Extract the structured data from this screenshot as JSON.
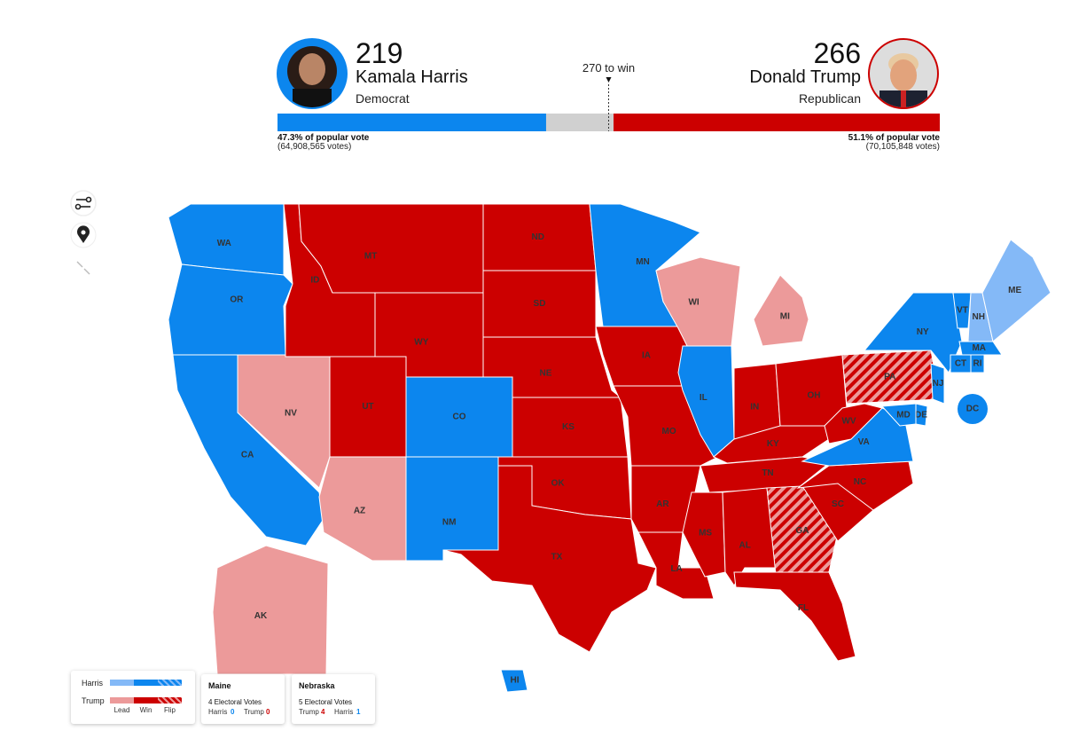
{
  "header": {
    "candidates": [
      {
        "electoral_votes": 219,
        "name": "Kamala Harris",
        "party": "Democrat",
        "color": "#0c86ee",
        "popular": "47.3% of popular vote",
        "votes": "(64,908,565 votes)"
      },
      {
        "electoral_votes": 266,
        "name": "Donald Trump",
        "party": "Republican",
        "color": "#cc0000",
        "popular": "51.1% of popular vote",
        "votes": "(70,105,848 votes)"
      }
    ],
    "threshold": {
      "value": 270,
      "label": "270 to win"
    }
  },
  "legend": {
    "parties": [
      {
        "name": "Harris",
        "lead": "#84b9f7",
        "win": "#0c86ee"
      },
      {
        "name": "Trump",
        "lead": "#ec9a9a",
        "win": "#cc0000"
      }
    ],
    "levels": [
      "Lead",
      "Win",
      "Flip"
    ]
  },
  "states": [
    {
      "abbr": "WA",
      "party": "Harris",
      "level": "Win"
    },
    {
      "abbr": "OR",
      "party": "Harris",
      "level": "Win"
    },
    {
      "abbr": "CA",
      "party": "Harris",
      "level": "Win"
    },
    {
      "abbr": "NV",
      "party": "Trump",
      "level": "Lead"
    },
    {
      "abbr": "ID",
      "party": "Trump",
      "level": "Win"
    },
    {
      "abbr": "MT",
      "party": "Trump",
      "level": "Win"
    },
    {
      "abbr": "WY",
      "party": "Trump",
      "level": "Win"
    },
    {
      "abbr": "UT",
      "party": "Trump",
      "level": "Win"
    },
    {
      "abbr": "CO",
      "party": "Harris",
      "level": "Win"
    },
    {
      "abbr": "AZ",
      "party": "Trump",
      "level": "Lead"
    },
    {
      "abbr": "NM",
      "party": "Harris",
      "level": "Win"
    },
    {
      "abbr": "ND",
      "party": "Trump",
      "level": "Win"
    },
    {
      "abbr": "SD",
      "party": "Trump",
      "level": "Win"
    },
    {
      "abbr": "NE",
      "party": "Trump",
      "level": "Win"
    },
    {
      "abbr": "KS",
      "party": "Trump",
      "level": "Win"
    },
    {
      "abbr": "OK",
      "party": "Trump",
      "level": "Win"
    },
    {
      "abbr": "TX",
      "party": "Trump",
      "level": "Win"
    },
    {
      "abbr": "MN",
      "party": "Harris",
      "level": "Win"
    },
    {
      "abbr": "IA",
      "party": "Trump",
      "level": "Win"
    },
    {
      "abbr": "MO",
      "party": "Trump",
      "level": "Win"
    },
    {
      "abbr": "AR",
      "party": "Trump",
      "level": "Win"
    },
    {
      "abbr": "LA",
      "party": "Trump",
      "level": "Win"
    },
    {
      "abbr": "WI",
      "party": "Trump",
      "level": "Lead"
    },
    {
      "abbr": "IL",
      "party": "Harris",
      "level": "Win"
    },
    {
      "abbr": "MI",
      "party": "Trump",
      "level": "Lead"
    },
    {
      "abbr": "IN",
      "party": "Trump",
      "level": "Win"
    },
    {
      "abbr": "OH",
      "party": "Trump",
      "level": "Win"
    },
    {
      "abbr": "KY",
      "party": "Trump",
      "level": "Win"
    },
    {
      "abbr": "TN",
      "party": "Trump",
      "level": "Win"
    },
    {
      "abbr": "MS",
      "party": "Trump",
      "level": "Win"
    },
    {
      "abbr": "AL",
      "party": "Trump",
      "level": "Win"
    },
    {
      "abbr": "GA",
      "party": "Trump",
      "level": "Flip"
    },
    {
      "abbr": "FL",
      "party": "Trump",
      "level": "Win"
    },
    {
      "abbr": "SC",
      "party": "Trump",
      "level": "Win"
    },
    {
      "abbr": "NC",
      "party": "Trump",
      "level": "Win"
    },
    {
      "abbr": "VA",
      "party": "Harris",
      "level": "Win"
    },
    {
      "abbr": "WV",
      "party": "Trump",
      "level": "Win"
    },
    {
      "abbr": "PA",
      "party": "Trump",
      "level": "Flip"
    },
    {
      "abbr": "NY",
      "party": "Harris",
      "level": "Win"
    },
    {
      "abbr": "VT",
      "party": "Harris",
      "level": "Win"
    },
    {
      "abbr": "NH",
      "party": "Harris",
      "level": "Lead"
    },
    {
      "abbr": "ME",
      "party": "Harris",
      "level": "Lead"
    },
    {
      "abbr": "MA",
      "party": "Harris",
      "level": "Win"
    },
    {
      "abbr": "CT",
      "party": "Harris",
      "level": "Win"
    },
    {
      "abbr": "RI",
      "party": "Harris",
      "level": "Win"
    },
    {
      "abbr": "NJ",
      "party": "Harris",
      "level": "Win"
    },
    {
      "abbr": "DE",
      "party": "Harris",
      "level": "Win"
    },
    {
      "abbr": "MD",
      "party": "Harris",
      "level": "Win"
    },
    {
      "abbr": "DC",
      "party": "Harris",
      "level": "Win"
    },
    {
      "abbr": "AK",
      "party": "Trump",
      "level": "Lead"
    },
    {
      "abbr": "HI",
      "party": "Harris",
      "level": "Win"
    }
  ],
  "splits": [
    {
      "state": "Maine",
      "ev": "4 Electoral Votes",
      "results": [
        {
          "name": "Harris",
          "votes": 0,
          "color": "#0c86ee"
        },
        {
          "name": "Trump",
          "votes": 0,
          "color": "#cc0000"
        }
      ]
    },
    {
      "state": "Nebraska",
      "ev": "5 Electoral Votes",
      "results": [
        {
          "name": "Trump",
          "votes": 4,
          "color": "#cc0000"
        },
        {
          "name": "Harris",
          "votes": 1,
          "color": "#0c86ee"
        }
      ]
    }
  ]
}
